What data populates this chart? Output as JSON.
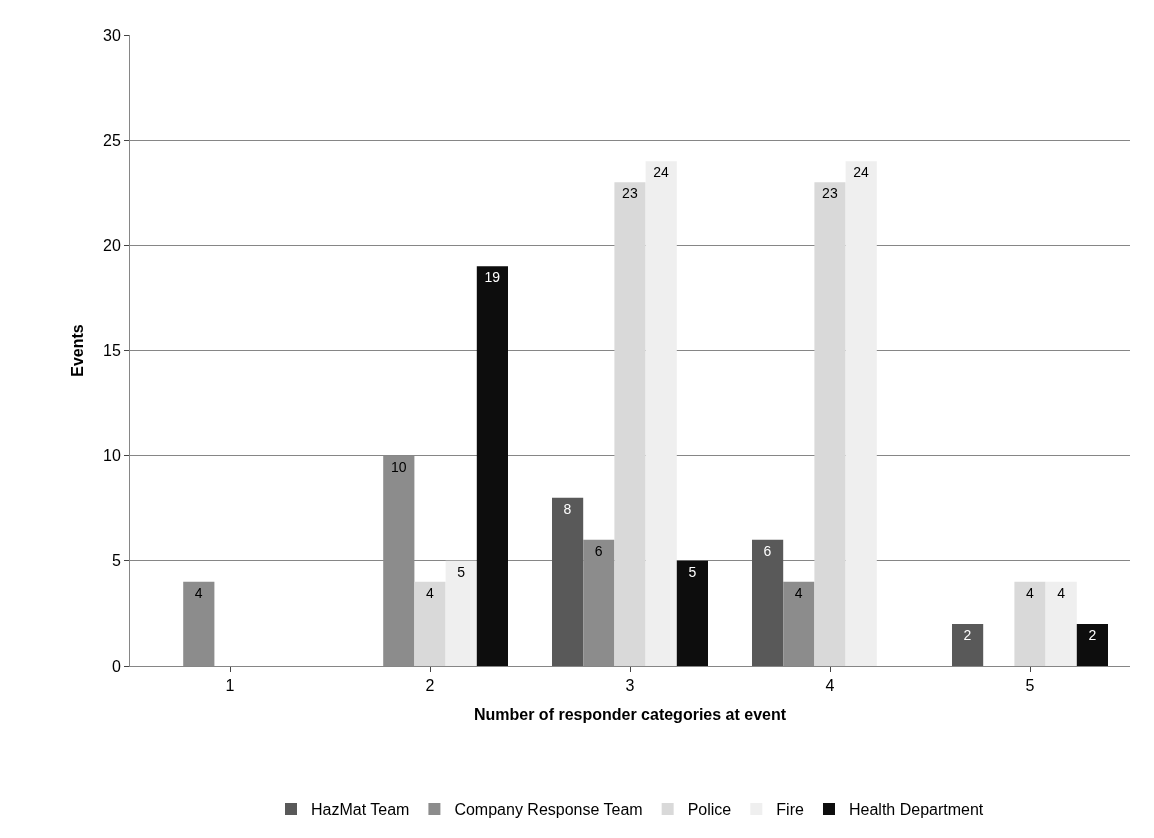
{
  "chart_data": {
    "type": "bar",
    "xlabel": "Number of responder categories at event",
    "ylabel": "Events",
    "categories": [
      "1",
      "2",
      "3",
      "4",
      "5"
    ],
    "series": [
      {
        "name": "HazMat Team",
        "color": "#595959",
        "values": [
          0,
          0,
          8,
          6,
          2
        ],
        "value_labels": [
          null,
          null,
          "8",
          "6",
          "2"
        ]
      },
      {
        "name": "Company Response Team",
        "color": "#8c8c8c",
        "values": [
          4,
          10,
          6,
          4,
          0
        ],
        "value_labels": [
          "4",
          "10",
          "6",
          "4",
          null
        ]
      },
      {
        "name": "Police",
        "color": "#d9d9d9",
        "values": [
          0,
          4,
          23,
          23,
          4
        ],
        "value_labels": [
          null,
          "4",
          "23",
          "23",
          "4"
        ]
      },
      {
        "name": "Fire",
        "color": "#efefef",
        "values": [
          0,
          5,
          24,
          24,
          4
        ],
        "value_labels": [
          null,
          "5",
          "24",
          "24",
          "4"
        ]
      },
      {
        "name": "Health Department",
        "color": "#0d0d0d",
        "values": [
          0,
          19,
          5,
          0,
          2
        ],
        "value_labels": [
          null,
          "19",
          "5",
          null,
          "2"
        ]
      }
    ],
    "ylim": [
      0,
      30
    ],
    "yticks": [
      0,
      5,
      10,
      15,
      20,
      25,
      30
    ],
    "grid": "y",
    "legend": "bottom"
  }
}
